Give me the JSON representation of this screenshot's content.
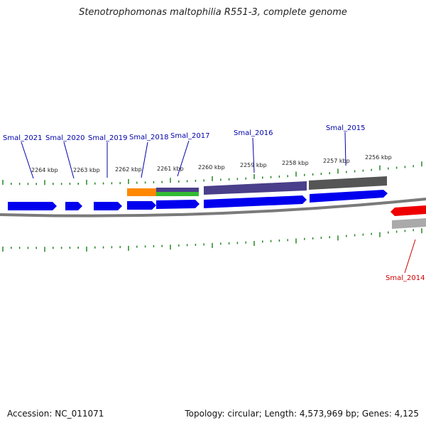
{
  "title": "Stenotrophomonas maltophilia R551-3, complete genome",
  "footer": {
    "accession": "Accession: NC_011071",
    "summary": "Topology: circular; Length: 4,573,969 bp; Genes: 4,125"
  },
  "colors": {
    "gene_label": "#0000aa",
    "selected_label": "#cc0000",
    "tick": "#228822",
    "cds": "#0000ee",
    "selected_gene": "#ee0000",
    "orange": "#ff8800",
    "green": "#33bb33",
    "purple": "#4a3f8a",
    "dark_gray": "#555555",
    "light_gray": "#aaaaaa",
    "backbone": "#7a7a7a"
  },
  "scale_labels": [
    "2264 kbp",
    "2263 kbp",
    "2262 kbp",
    "2261 kbp",
    "2260 kbp",
    "2259 kbp",
    "2258 kbp",
    "2257 kbp",
    "2256 kbp"
  ],
  "genes": [
    {
      "name": "Smal_2021"
    },
    {
      "name": "Smal_2020"
    },
    {
      "name": "Smal_2019"
    },
    {
      "name": "Smal_2018"
    },
    {
      "name": "Smal_2017"
    },
    {
      "name": "Smal_2016"
    },
    {
      "name": "Smal_2015"
    },
    {
      "name": "Smal_2014"
    }
  ]
}
